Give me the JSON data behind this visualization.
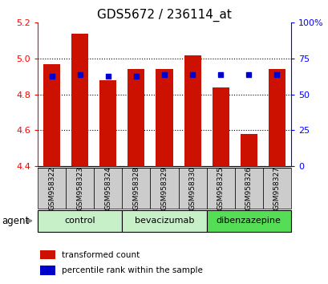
{
  "title": "GDS5672 / 236114_at",
  "samples": [
    "GSM958322",
    "GSM958323",
    "GSM958324",
    "GSM958328",
    "GSM958329",
    "GSM958330",
    "GSM958325",
    "GSM958326",
    "GSM958327"
  ],
  "red_values": [
    4.97,
    5.14,
    4.88,
    4.94,
    4.94,
    5.02,
    4.84,
    4.58,
    4.94
  ],
  "blue_values": [
    4.9,
    4.91,
    4.9,
    4.9,
    4.91,
    4.91,
    4.91,
    4.91,
    4.91
  ],
  "ylim_left": [
    4.4,
    5.2
  ],
  "ylim_right": [
    0,
    100
  ],
  "yticks_left": [
    4.4,
    4.6,
    4.8,
    5.0,
    5.2
  ],
  "yticks_right": [
    0,
    25,
    50,
    75,
    100
  ],
  "ytick_labels_right": [
    "0",
    "25",
    "50",
    "75",
    "100%"
  ],
  "groups": [
    {
      "label": "control",
      "indices": [
        0,
        1,
        2
      ],
      "color": "#c8f0c8"
    },
    {
      "label": "bevacizumab",
      "indices": [
        3,
        4,
        5
      ],
      "color": "#c8f0c8"
    },
    {
      "label": "dibenzazepine",
      "indices": [
        6,
        7,
        8
      ],
      "color": "#55dd55"
    }
  ],
  "bar_bottom": 4.4,
  "bar_color_red": "#cc1100",
  "bar_color_blue": "#0000cc",
  "title_fontsize": 11,
  "tick_fontsize": 8,
  "sample_fontsize": 6.5,
  "group_fontsize": 8,
  "legend_fontsize": 7.5,
  "bar_width": 0.6,
  "blue_marker_size": 5,
  "grid_linestyle": "dotted",
  "grid_linewidth": 0.8,
  "grid_ticks": [
    4.6,
    4.8,
    5.0
  ]
}
